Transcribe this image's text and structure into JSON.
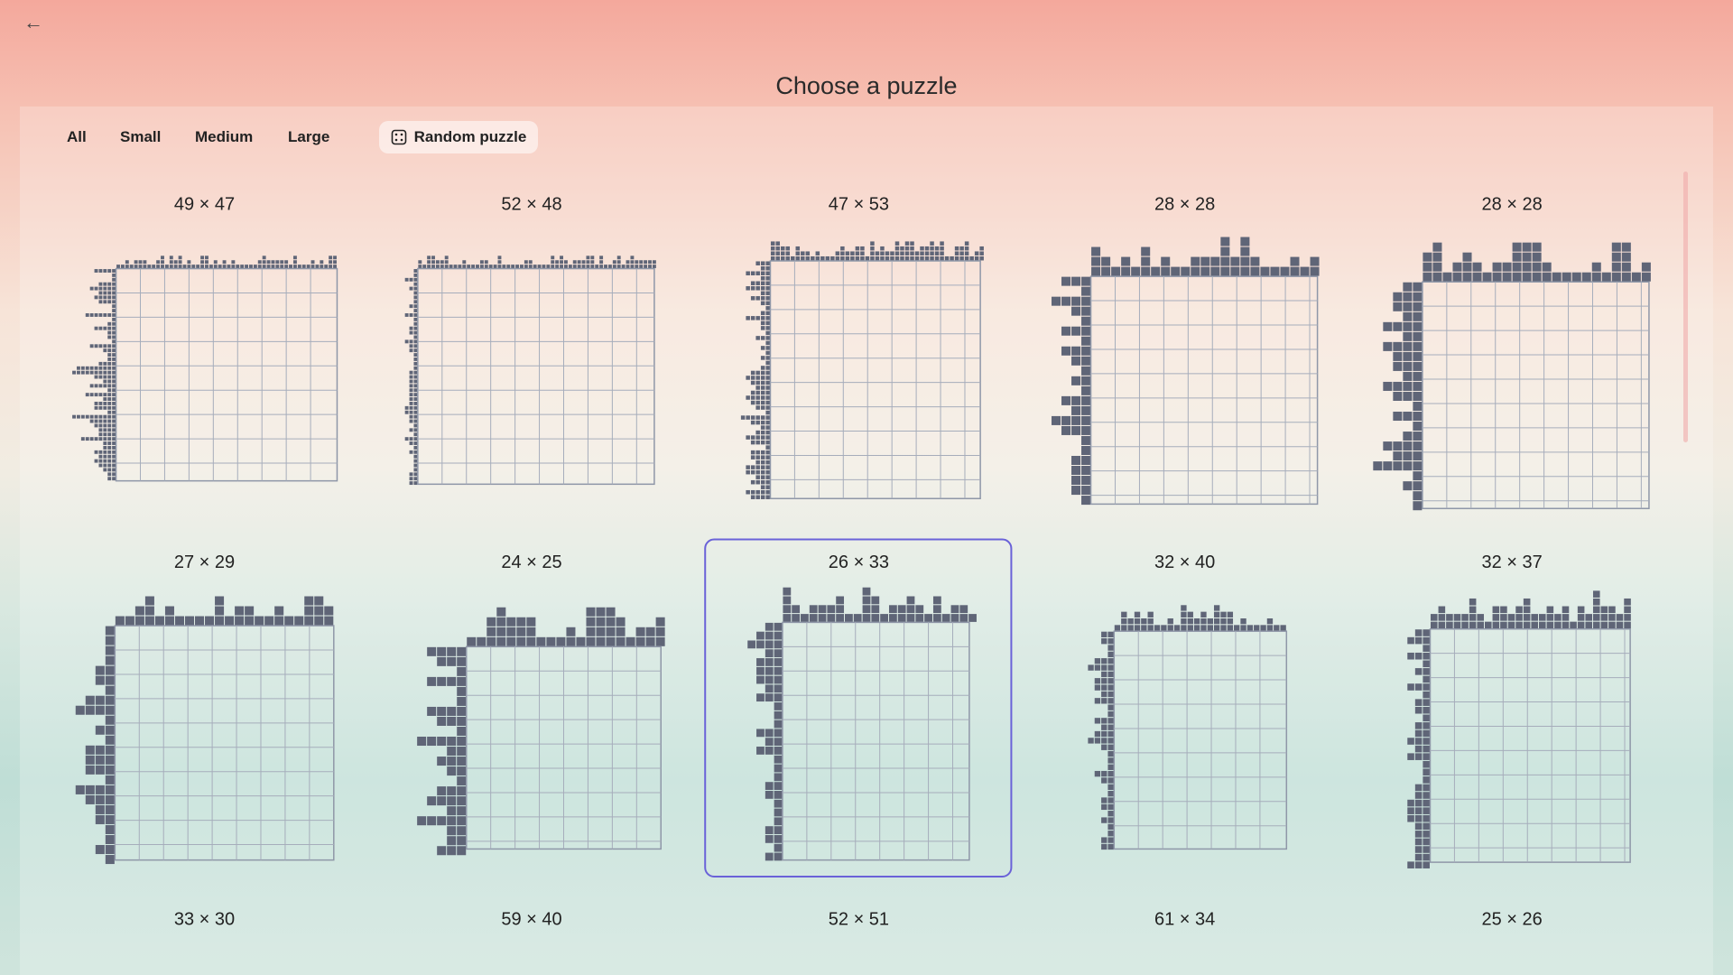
{
  "header": {
    "title": "Choose a puzzle"
  },
  "filters": [
    "All",
    "Small",
    "Medium",
    "Large"
  ],
  "random_button": "Random puzzle",
  "puzzles": [
    {
      "size": "49 × 47"
    },
    {
      "size": "52 × 48"
    },
    {
      "size": "47 × 53"
    },
    {
      "size": "28 × 28"
    },
    {
      "size": "28 × 28"
    },
    {
      "size": "27 × 29"
    },
    {
      "size": "24 × 25"
    },
    {
      "size": "26 × 33"
    },
    {
      "size": "32 × 40"
    },
    {
      "size": "32 × 37"
    },
    {
      "size": "33 × 30"
    },
    {
      "size": "59 × 40"
    },
    {
      "size": "52 × 51"
    },
    {
      "size": "61 × 34"
    },
    {
      "size": "25 × 26"
    }
  ]
}
